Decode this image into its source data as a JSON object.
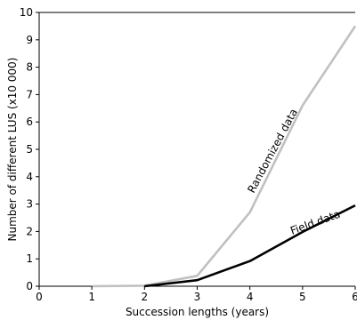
{
  "chart_data": {
    "type": "line",
    "title": "",
    "xlabel": "Succession lengths (years)",
    "ylabel": "Number of different LUS (x10 000)",
    "xlim": [
      0,
      6
    ],
    "ylim": [
      0,
      10
    ],
    "x_ticks": [
      "0",
      "1",
      "2",
      "3",
      "4",
      "5",
      "6"
    ],
    "y_ticks": [
      "0",
      "1",
      "2",
      "3",
      "4",
      "5",
      "6",
      "7",
      "8",
      "9",
      "10"
    ],
    "grid": false,
    "legend": "none",
    "series": [
      {
        "name": "Randomized data",
        "color": "#c0c0c0",
        "x": [
          1,
          2,
          3,
          4,
          5,
          6
        ],
        "y": [
          0.0,
          0.02,
          0.38,
          2.7,
          6.6,
          9.5
        ]
      },
      {
        "name": "Field data",
        "color": "#000000",
        "x": [
          2,
          3,
          4,
          5,
          6
        ],
        "y": [
          0.0,
          0.22,
          0.92,
          1.98,
          2.95
        ]
      }
    ],
    "annotations": [
      {
        "text": "Randomized data",
        "series": 0
      },
      {
        "text": "Field data",
        "series": 1
      }
    ]
  }
}
